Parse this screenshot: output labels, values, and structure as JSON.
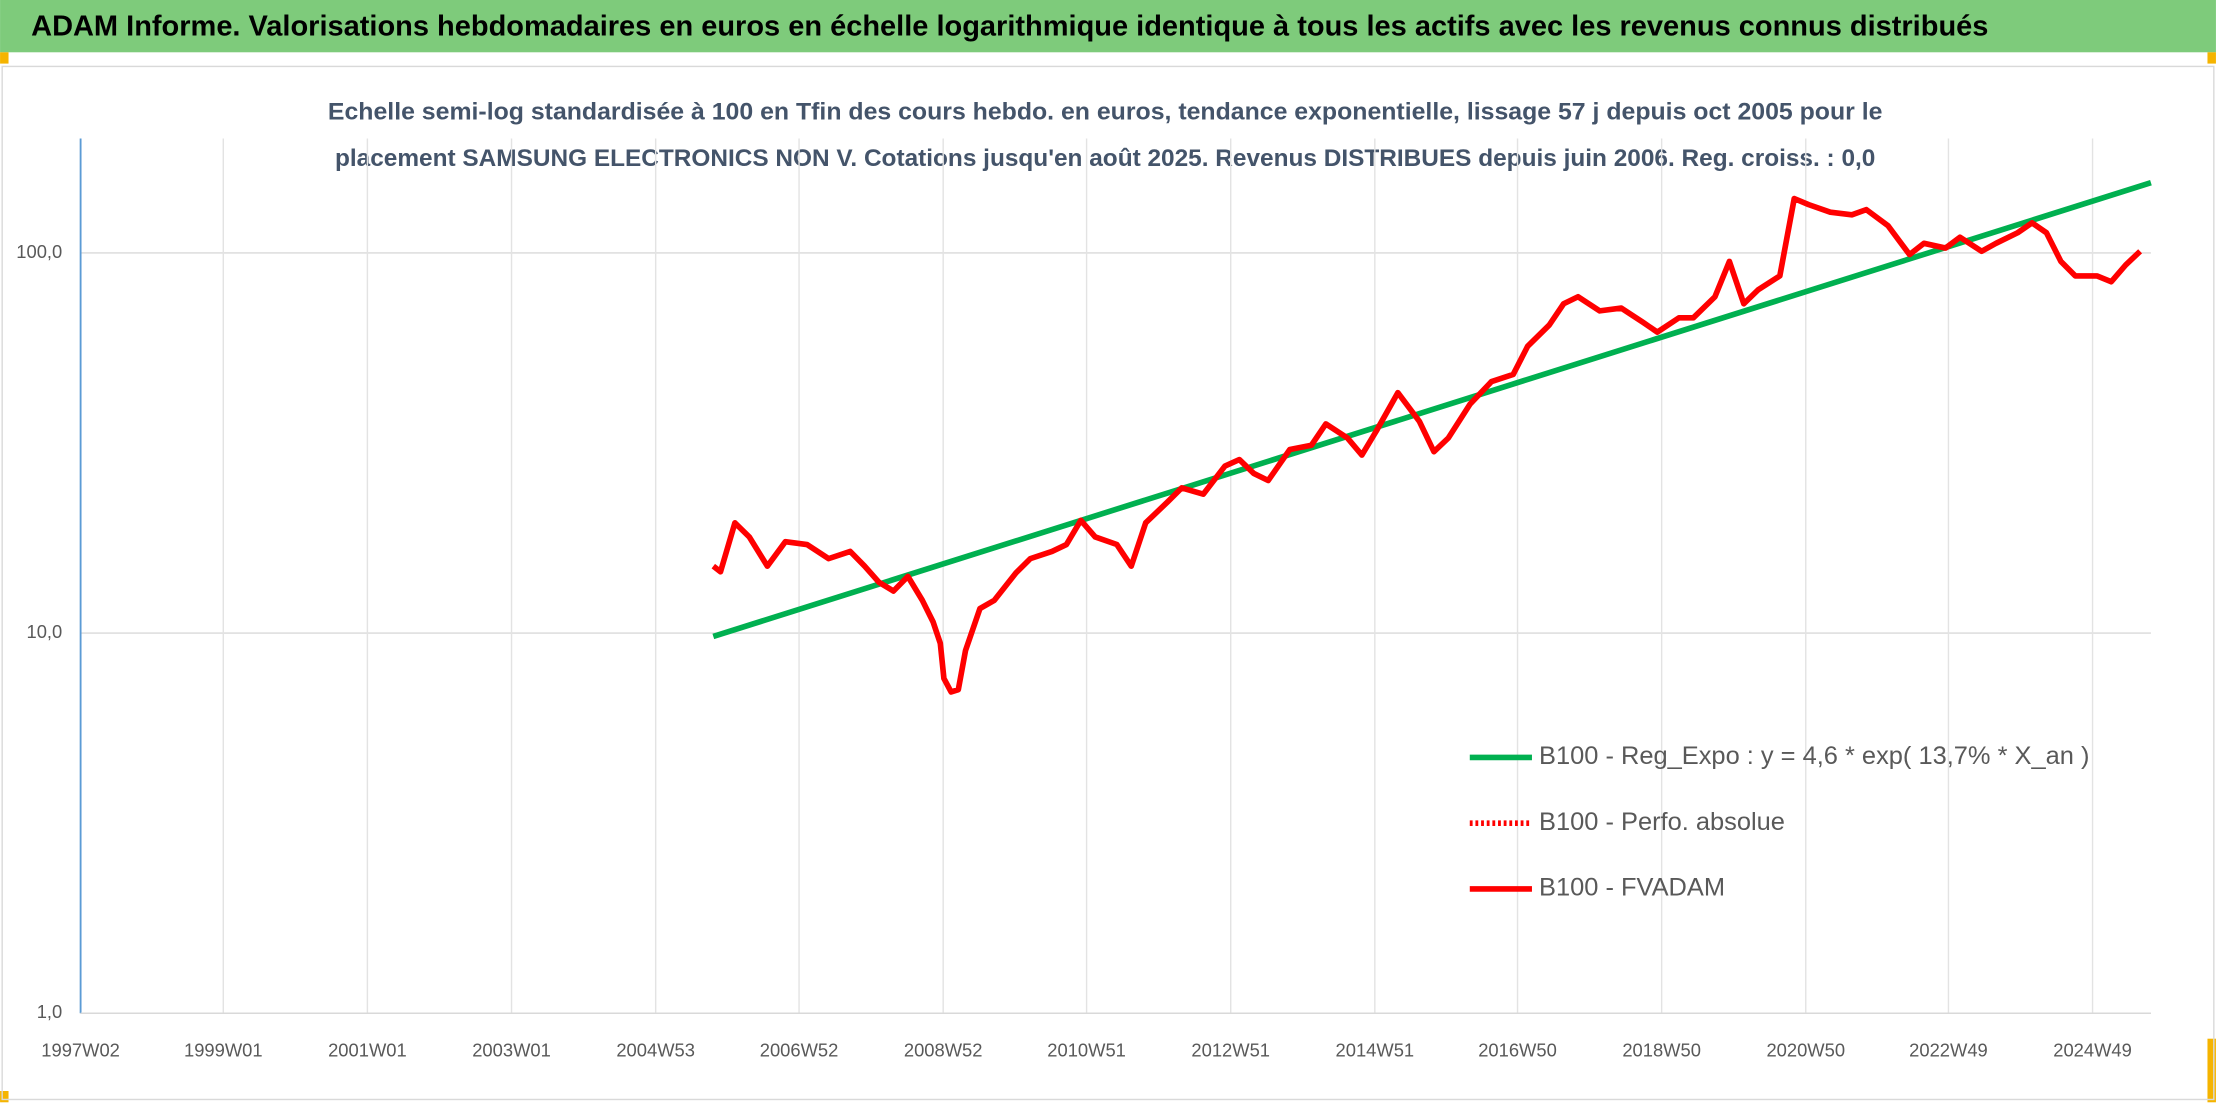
{
  "header": {
    "title": "ADAM Informe. Valorisations hebdomadaires en euros en échelle logarithmique identique à tous les actifs avec les revenus connus distribués"
  },
  "chart_data": {
    "type": "line",
    "title_lines": [
      "Echelle semi-log standardisée à 100 en Tfin des cours hebdo. en euros, tendance exponentielle, lissage 57 j depuis oct 2005 pour le",
      "placement SAMSUNG ELECTRONICS NON V. Cotations jusqu'en août 2025. Revenus DISTRIBUES depuis juin 2006. Reg. croiss. : 0,0"
    ],
    "log_y": true,
    "grid": true,
    "legend": "right",
    "xlim": [
      1997.02,
      2025.75
    ],
    "ylim": [
      1,
      200
    ],
    "yticks": [
      {
        "value": 1,
        "label": "1,0"
      },
      {
        "value": 10,
        "label": "10,0"
      },
      {
        "value": 100,
        "label": "100,0"
      }
    ],
    "xticks": [
      {
        "value": 1997.02,
        "label": "1997W02"
      },
      {
        "value": 1999.0,
        "label": "1999W01"
      },
      {
        "value": 2001.0,
        "label": "2001W01"
      },
      {
        "value": 2003.0,
        "label": "2003W01"
      },
      {
        "value": 2005.0,
        "label": "2004W53"
      },
      {
        "value": 2006.99,
        "label": "2006W52"
      },
      {
        "value": 2008.99,
        "label": "2008W52"
      },
      {
        "value": 2010.98,
        "label": "2010W51"
      },
      {
        "value": 2012.98,
        "label": "2012W51"
      },
      {
        "value": 2014.98,
        "label": "2014W51"
      },
      {
        "value": 2016.96,
        "label": "2016W50"
      },
      {
        "value": 2018.96,
        "label": "2018W50"
      },
      {
        "value": 2020.96,
        "label": "2020W50"
      },
      {
        "value": 2022.94,
        "label": "2022W49"
      },
      {
        "value": 2024.94,
        "label": "2024W49"
      }
    ],
    "series": [
      {
        "name": "B100 - Reg_Expo : y = 4,6 * exp( 13,7% *  X_an )",
        "color": "#00b050",
        "style": "solid",
        "x": [
          2005.8,
          2025.75
        ],
        "values": [
          9.8,
          153
        ]
      },
      {
        "name": "B100 - Perfo. absolue",
        "color": "#ff0000",
        "style": "dotted",
        "x": [],
        "values": []
      },
      {
        "name": "B100 - FVADAM",
        "color": "#ff0000",
        "style": "solid",
        "x": [
          2005.8,
          2005.9,
          2006.1,
          2006.3,
          2006.55,
          2006.8,
          2007.1,
          2007.4,
          2007.7,
          2007.9,
          2008.1,
          2008.3,
          2008.5,
          2008.7,
          2008.85,
          2008.95,
          2009.0,
          2009.1,
          2009.2,
          2009.3,
          2009.5,
          2009.7,
          2010.0,
          2010.2,
          2010.5,
          2010.7,
          2010.9,
          2011.1,
          2011.4,
          2011.6,
          2011.8,
          2012.1,
          2012.3,
          2012.6,
          2012.9,
          2013.1,
          2013.3,
          2013.5,
          2013.8,
          2014.1,
          2014.3,
          2014.6,
          2014.8,
          2015.0,
          2015.3,
          2015.6,
          2015.8,
          2016.0,
          2016.3,
          2016.6,
          2016.9,
          2017.1,
          2017.4,
          2017.6,
          2017.8,
          2018.1,
          2018.4,
          2018.7,
          2018.9,
          2019.2,
          2019.4,
          2019.7,
          2019.9,
          2020.1,
          2020.3,
          2020.6,
          2020.8,
          2021.0,
          2021.3,
          2021.6,
          2021.8,
          2022.1,
          2022.4,
          2022.6,
          2022.9,
          2023.1,
          2023.4,
          2023.6,
          2023.9,
          2024.1,
          2024.3,
          2024.5,
          2024.7,
          2025.0,
          2025.2,
          2025.4,
          2025.6
        ],
        "values": [
          15,
          14.5,
          19.5,
          17.9,
          15,
          17.4,
          17.1,
          15.7,
          16.4,
          15,
          13.6,
          12.9,
          14.1,
          12.2,
          10.7,
          9.4,
          7.6,
          7.0,
          7.1,
          9.0,
          11.6,
          12.2,
          14.4,
          15.7,
          16.4,
          17.1,
          19.8,
          17.9,
          17.1,
          15,
          19.5,
          22.1,
          24.1,
          23.2,
          27.5,
          28.6,
          26.3,
          25.2,
          30.4,
          31.2,
          35.5,
          32.6,
          29.4,
          34,
          42.9,
          36,
          30,
          32.6,
          40,
          45.9,
          47.9,
          56.8,
          64.6,
          73.5,
          76.7,
          70.4,
          71.6,
          65.7,
          61.9,
          67.5,
          67.5,
          76.7,
          95,
          73.5,
          80,
          87,
          139,
          134,
          128,
          126,
          130,
          118,
          99,
          106,
          103,
          110,
          101,
          106,
          113,
          120,
          113,
          95,
          87,
          87,
          84,
          93,
          101
        ]
      }
    ]
  }
}
